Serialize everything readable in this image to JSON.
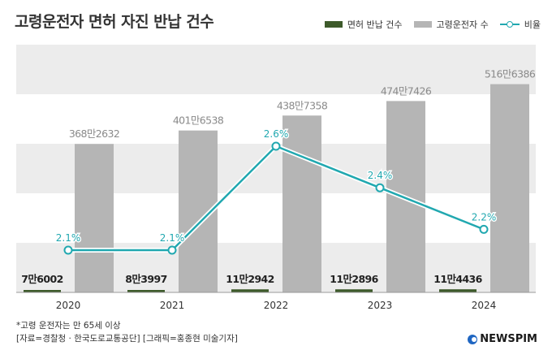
{
  "title": "고령운전자 면허 자진 반납 건수",
  "legend": {
    "returns_label": "면허 반납 건수",
    "drivers_label": "고령운전자 수",
    "ratio_label": "비율"
  },
  "colors": {
    "returns": "#3d5a2a",
    "drivers": "#b5b5b5",
    "ratio": "#21a8b0",
    "band": "#ececec"
  },
  "chart_data": {
    "type": "bar",
    "categories": [
      "2020",
      "2021",
      "2022",
      "2023",
      "2024"
    ],
    "series": [
      {
        "name": "면허 반납 건수",
        "kind": "bar",
        "values": [
          76002,
          83997,
          112942,
          112896,
          114436
        ],
        "labels": [
          "7만6002",
          "8만3997",
          "11만2942",
          "11만2896",
          "11만4436"
        ]
      },
      {
        "name": "고령운전자 수",
        "kind": "bar",
        "values": [
          3682632,
          4016538,
          4387358,
          4747426,
          5166386
        ],
        "labels": [
          "368만2632",
          "401만6538",
          "438만7358",
          "474만7426",
          "516만6386"
        ]
      },
      {
        "name": "비율",
        "kind": "line",
        "values": [
          2.1,
          2.1,
          2.6,
          2.4,
          2.2
        ],
        "labels": [
          "2.1%",
          "2.1%",
          "2.6%",
          "2.4%",
          "2.2%"
        ]
      }
    ],
    "grid": "alternating bands",
    "legend_position": "top-right"
  },
  "footnote": {
    "line1": "*고령 운전자는 만 65세 이상",
    "line2": "[자료=경찰청 · 한국도로교통공단] [그래픽=홍종현 미술기자]"
  },
  "brand": "NEWSPIM"
}
